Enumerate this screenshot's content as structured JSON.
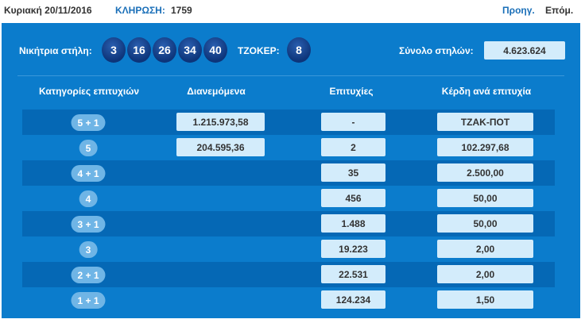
{
  "header": {
    "date": "Κυριακή 20/11/2016",
    "draw_label": "ΚΛΗΡΩΣΗ:",
    "draw_number": "1759",
    "prev": "Προηγ.",
    "next": "Επόμ."
  },
  "winning": {
    "label": "Νικήτρια στήλη:",
    "numbers": [
      "3",
      "16",
      "26",
      "34",
      "40"
    ],
    "joker_label": "ΤΖΟΚΕΡ:",
    "joker": "8",
    "total_label": "Σύνολο στηλών:",
    "total": "4.623.624"
  },
  "table": {
    "headers": [
      "Κατηγορίες επιτυχιών",
      "Διανεμόμενα",
      "Επιτυχίες",
      "Κέρδη ανά επιτυχία"
    ],
    "rows": [
      {
        "cat": "5 + 1",
        "dist": "1.215.973,58",
        "wins": "-",
        "prize": "ΤΖΑΚ-ΠΟΤ"
      },
      {
        "cat": "5",
        "dist": "204.595,36",
        "wins": "2",
        "prize": "102.297,68"
      },
      {
        "cat": "4 + 1",
        "dist": null,
        "wins": "35",
        "prize": "2.500,00"
      },
      {
        "cat": "4",
        "dist": null,
        "wins": "456",
        "prize": "50,00"
      },
      {
        "cat": "3 + 1",
        "dist": null,
        "wins": "1.488",
        "prize": "50,00"
      },
      {
        "cat": "3",
        "dist": null,
        "wins": "19.223",
        "prize": "2,00"
      },
      {
        "cat": "2 + 1",
        "dist": null,
        "wins": "22.531",
        "prize": "2,00"
      },
      {
        "cat": "1 + 1",
        "dist": null,
        "wins": "124.234",
        "prize": "1,50"
      }
    ]
  },
  "colors": {
    "panel": "#0b7ccc",
    "dark_row": "#0568b5",
    "label_blue": "#1a6fb8",
    "ball": "#0d3479"
  }
}
